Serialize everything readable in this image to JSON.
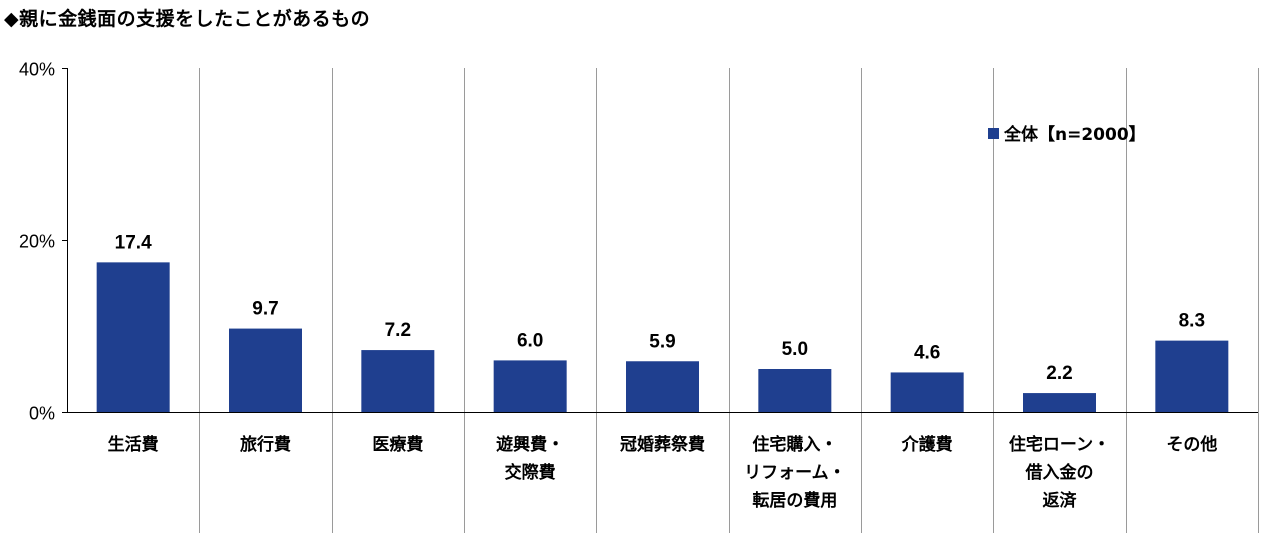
{
  "chart_data": {
    "type": "bar",
    "title": "◆親に金銭面の支援をしたことがあるもの",
    "categories": [
      [
        "生活費"
      ],
      [
        "旅行費"
      ],
      [
        "医療費"
      ],
      [
        "遊興費・",
        "交際費"
      ],
      [
        "冠婚葬祭費"
      ],
      [
        "住宅購入・",
        "リフォーム・",
        "転居の費用"
      ],
      [
        "介護費"
      ],
      [
        "住宅ローン・",
        "借入金の",
        "返済"
      ],
      [
        "その他"
      ]
    ],
    "series": [
      {
        "name": "全体【n=2000】",
        "values": [
          17.4,
          9.7,
          7.2,
          6.0,
          5.9,
          5.0,
          4.6,
          2.2,
          8.3
        ]
      }
    ],
    "value_labels": [
      "17.4",
      "9.7",
      "7.2",
      "6.0",
      "5.9",
      "5.0",
      "4.6",
      "2.2",
      "8.3"
    ],
    "ylim": [
      0,
      40
    ],
    "yticks": [
      "0%",
      "20%",
      "40%"
    ],
    "ytick_values": [
      0,
      20,
      40
    ],
    "bar_color": "#1f3f8f",
    "grid": "vertical separators between categories",
    "legend_position": "top-right"
  }
}
